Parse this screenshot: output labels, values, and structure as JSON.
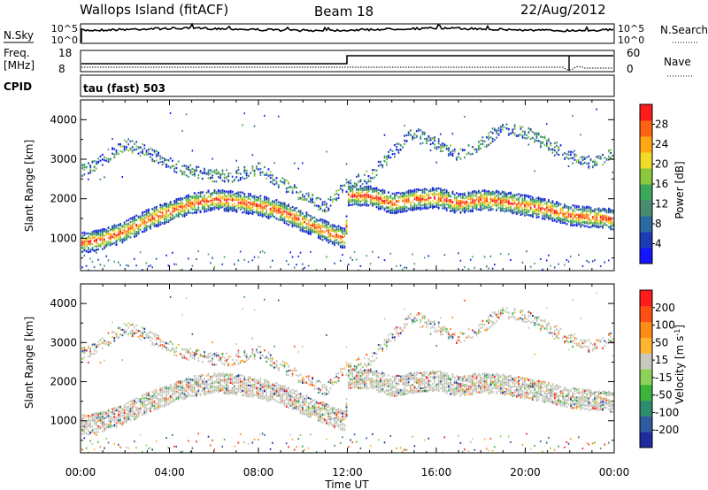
{
  "header": {
    "station": "Wallops Island (fitACF)",
    "beam": "Beam 18",
    "date": "22/Aug/2012"
  },
  "panels": {
    "nsky": {
      "label": "N.Sky",
      "right_label": "N.Search",
      "ticks_left": [
        "10^5",
        "10^0"
      ],
      "ticks_right": [
        "10^5",
        "10^0"
      ]
    },
    "freq": {
      "label_line1": "Freq.",
      "label_line2": "[MHz]",
      "right_label": "Nave",
      "ticks_left": [
        "18",
        "8"
      ],
      "ticks_right": [
        "60",
        "0"
      ],
      "cpid_label": "CPID",
      "cpid_text": "tau (fast) 503"
    }
  },
  "chart_data": [
    {
      "type": "heatmap",
      "quantity": "Power",
      "ylabel": "Slant Range [km]",
      "xlabel": "Time UT",
      "x_ticks": [
        "00:00",
        "04:00",
        "08:00",
        "12:00",
        "16:00",
        "20:00",
        "00:00"
      ],
      "y_ticks": [
        1000,
        2000,
        3000,
        4000
      ],
      "ylim": [
        180,
        4500
      ],
      "colorbar": {
        "label": "Power [dB]",
        "tick_labels": [
          "4",
          "8",
          "12",
          "16",
          "20",
          "24",
          "28"
        ],
        "colors": [
          "#1414ff",
          "#1c3cb4",
          "#2a6aa0",
          "#4a8a6e",
          "#3da85a",
          "#8cc83c",
          "#f0dc28",
          "#ffa814",
          "#ff6414",
          "#ff1c1c"
        ]
      },
      "features": [
        {
          "name": "main band",
          "points": [
            [
              0.0,
              900
            ],
            [
              1.0,
              1000
            ],
            [
              2.0,
              1200
            ],
            [
              3.0,
              1500
            ],
            [
              4.0,
              1700
            ],
            [
              5.0,
              1900
            ],
            [
              6.0,
              2000
            ],
            [
              7.0,
              1950
            ],
            [
              8.0,
              1850
            ],
            [
              9.0,
              1700
            ],
            [
              10.0,
              1450
            ],
            [
              11.0,
              1200
            ],
            [
              11.9,
              1000
            ],
            [
              12.0,
              2100
            ],
            [
              13.0,
              2100
            ],
            [
              14.0,
              1900
            ],
            [
              15.0,
              2000
            ],
            [
              16.0,
              2050
            ],
            [
              17.0,
              1900
            ],
            [
              18.0,
              2000
            ],
            [
              19.0,
              1950
            ],
            [
              20.0,
              1850
            ],
            [
              21.0,
              1750
            ],
            [
              22.0,
              1600
            ],
            [
              23.0,
              1550
            ],
            [
              24.0,
              1500
            ]
          ]
        },
        {
          "name": "upper band",
          "points": [
            [
              0.0,
              2700
            ],
            [
              1.0,
              3000
            ],
            [
              2.0,
              3400
            ],
            [
              3.0,
              3200
            ],
            [
              4.0,
              2900
            ],
            [
              5.0,
              2700
            ],
            [
              6.0,
              2600
            ],
            [
              7.0,
              2600
            ],
            [
              8.0,
              2800
            ],
            [
              9.0,
              2400
            ],
            [
              10.0,
              2100
            ],
            [
              11.0,
              1800
            ],
            [
              12.0,
              2400
            ],
            [
              13.0,
              2600
            ],
            [
              14.0,
              3200
            ],
            [
              15.0,
              3700
            ],
            [
              16.0,
              3400
            ],
            [
              17.0,
              3100
            ],
            [
              18.0,
              3400
            ],
            [
              19.0,
              3800
            ],
            [
              20.0,
              3700
            ],
            [
              21.0,
              3400
            ],
            [
              22.0,
              3100
            ],
            [
              23.0,
              2900
            ],
            [
              24.0,
              3200
            ]
          ]
        }
      ]
    },
    {
      "type": "heatmap",
      "quantity": "Velocity",
      "ylabel": "Slant Range [km]",
      "xlabel": "Time UT",
      "x_ticks": [
        "00:00",
        "04:00",
        "08:00",
        "12:00",
        "16:00",
        "20:00",
        "00:00"
      ],
      "y_ticks": [
        1000,
        2000,
        3000,
        4000
      ],
      "ylim": [
        180,
        4500
      ],
      "colorbar": {
        "label": "Velocity [m s",
        "label_sup": "-1",
        "label_end": "]",
        "tick_labels": [
          "200",
          "100",
          "50",
          "15",
          "-15",
          "-50",
          "-100",
          "-200"
        ],
        "colors": [
          "#1e2ca0",
          "#2e5aa0",
          "#2e8c6e",
          "#3cb43c",
          "#8cd25a",
          "#c8c8c0",
          "#ffb432",
          "#ff8c14",
          "#ff5014",
          "#ff1c1c"
        ]
      }
    }
  ]
}
